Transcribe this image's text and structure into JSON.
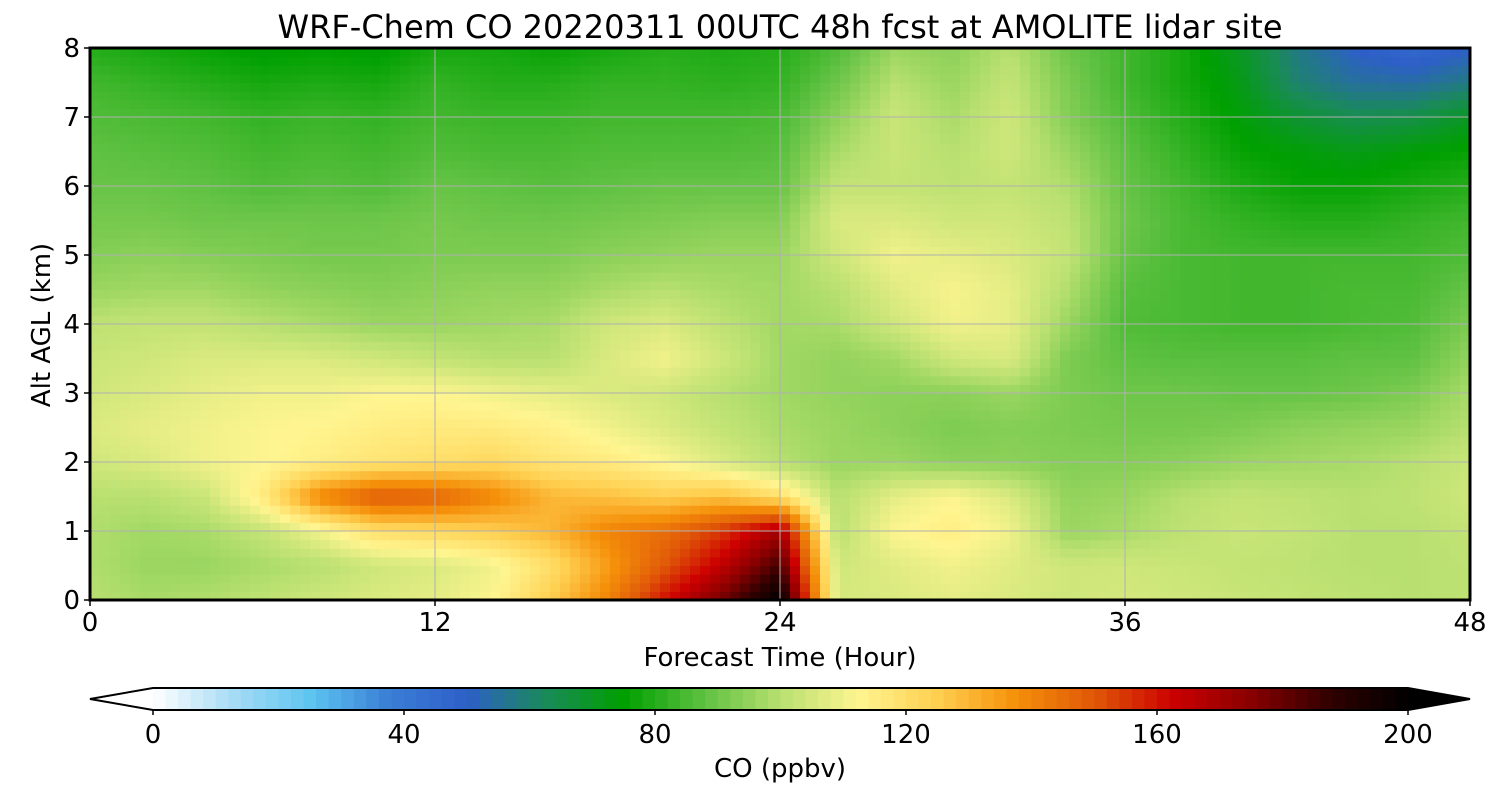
{
  "chart_data": {
    "type": "heatmap",
    "title": "WRF-Chem CO  20220311 00UTC 48h fcst at AMOLITE lidar site",
    "xlabel": "Forecast Time (Hour)",
    "ylabel": "Alt AGL (km)",
    "xlim": [
      0,
      48
    ],
    "ylim": [
      0,
      8
    ],
    "xticks": [
      "0",
      "12",
      "24",
      "36",
      "48"
    ],
    "yticks": [
      "0",
      "1",
      "2",
      "3",
      "4",
      "5",
      "6",
      "7",
      "8"
    ],
    "grid": true,
    "x_hours": [
      0,
      2,
      4,
      6,
      8,
      10,
      12,
      14,
      16,
      18,
      20,
      22,
      24,
      26,
      28,
      30,
      32,
      34,
      36,
      38,
      40,
      42,
      44,
      46,
      48
    ],
    "y_km": [
      0,
      0.5,
      1,
      1.5,
      2,
      2.5,
      3,
      3.5,
      4,
      4.5,
      5,
      5.5,
      6,
      6.5,
      7,
      7.5,
      8
    ],
    "values": [
      [
        100,
        98,
        99,
        101,
        104,
        106,
        108,
        112,
        125,
        140,
        160,
        178,
        200,
        105,
        106,
        108,
        106,
        104,
        105,
        104,
        103,
        102,
        101,
        100,
        101
      ],
      [
        99,
        96,
        96,
        98,
        100,
        104,
        106,
        110,
        120,
        135,
        150,
        165,
        185,
        104,
        107,
        110,
        107,
        104,
        104,
        103,
        102,
        101,
        100,
        100,
        101
      ],
      [
        99,
        97,
        98,
        102,
        110,
        120,
        122,
        125,
        130,
        140,
        145,
        155,
        170,
        100,
        112,
        115,
        110,
        96,
        98,
        101,
        103,
        102,
        100,
        100,
        102
      ],
      [
        100,
        100,
        103,
        116,
        140,
        150,
        148,
        140,
        130,
        128,
        125,
        128,
        120,
        100,
        108,
        112,
        106,
        95,
        96,
        100,
        102,
        101,
        100,
        101,
        104
      ],
      [
        104,
        106,
        110,
        112,
        115,
        118,
        120,
        122,
        118,
        116,
        112,
        106,
        100,
        96,
        96,
        94,
        94,
        93,
        93,
        94,
        96,
        97,
        98,
        100,
        103
      ],
      [
        106,
        108,
        110,
        112,
        113,
        115,
        116,
        116,
        114,
        110,
        106,
        102,
        98,
        96,
        94,
        92,
        93,
        92,
        91,
        91,
        92,
        94,
        95,
        96,
        100
      ],
      [
        104,
        106,
        108,
        110,
        110,
        112,
        112,
        110,
        108,
        106,
        104,
        100,
        97,
        95,
        94,
        94,
        96,
        92,
        90,
        90,
        89,
        89,
        90,
        92,
        98
      ],
      [
        103,
        104,
        106,
        106,
        106,
        104,
        102,
        100,
        100,
        106,
        110,
        104,
        97,
        95,
        97,
        104,
        106,
        92,
        88,
        87,
        87,
        87,
        88,
        88,
        95
      ],
      [
        101,
        102,
        102,
        100,
        98,
        96,
        96,
        97,
        98,
        104,
        106,
        101,
        97,
        98,
        104,
        110,
        108,
        96,
        86,
        85,
        84,
        84,
        85,
        86,
        92
      ],
      [
        96,
        97,
        97,
        95,
        94,
        93,
        94,
        95,
        95,
        98,
        100,
        98,
        97,
        100,
        107,
        111,
        108,
        99,
        87,
        85,
        84,
        84,
        85,
        85,
        89
      ],
      [
        93,
        94,
        93,
        92,
        91,
        91,
        92,
        92,
        92,
        94,
        95,
        96,
        96,
        104,
        110,
        108,
        106,
        102,
        89,
        85,
        84,
        84,
        84,
        84,
        86
      ],
      [
        91,
        91,
        90,
        90,
        90,
        90,
        91,
        90,
        90,
        91,
        92,
        93,
        93,
        106,
        106,
        104,
        104,
        101,
        90,
        85,
        82,
        80,
        80,
        82,
        84
      ],
      [
        89,
        89,
        88,
        86,
        87,
        86,
        89,
        88,
        87,
        88,
        89,
        89,
        89,
        102,
        102,
        101,
        102,
        99,
        89,
        84,
        79,
        76,
        76,
        78,
        80
      ],
      [
        88,
        87,
        86,
        84,
        85,
        84,
        86,
        85,
        85,
        86,
        86,
        86,
        87,
        98,
        103,
        100,
        104,
        96,
        88,
        82,
        76,
        74,
        72,
        74,
        76
      ],
      [
        86,
        85,
        84,
        82,
        83,
        82,
        84,
        83,
        83,
        84,
        84,
        84,
        85,
        94,
        103,
        98,
        104,
        93,
        86,
        80,
        74,
        68,
        64,
        65,
        70
      ],
      [
        84,
        82,
        80,
        78,
        79,
        78,
        82,
        80,
        80,
        82,
        82,
        81,
        82,
        90,
        100,
        96,
        102,
        92,
        84,
        78,
        72,
        60,
        55,
        54,
        58
      ],
      [
        80,
        78,
        76,
        74,
        75,
        74,
        78,
        78,
        76,
        78,
        80,
        79,
        80,
        86,
        96,
        94,
        100,
        90,
        84,
        78,
        70,
        58,
        50,
        46,
        50
      ]
    ],
    "colorbar": {
      "label": "CO  (ppbv)",
      "min": 0,
      "max": 200,
      "extend": "both",
      "ticks": [
        "0",
        "40",
        "80",
        "120",
        "160",
        "200"
      ],
      "colors": [
        "#ffffff",
        "#a8dcf5",
        "#5ec4f0",
        "#3a7fd6",
        "#2e5fc8",
        "#1a8a5a",
        "#00a000",
        "#5cc040",
        "#b8e070",
        "#fff590",
        "#ffcf50",
        "#f5900a",
        "#e05808",
        "#cc0000",
        "#880000",
        "#300000",
        "#000000"
      ]
    }
  }
}
